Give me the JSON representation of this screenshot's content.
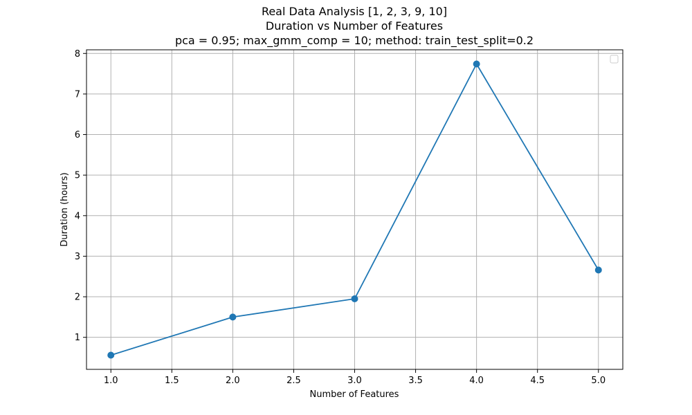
{
  "chart_data": {
    "type": "line",
    "title_lines": [
      "Real Data Analysis [1, 2, 3, 9, 10]",
      "Duration vs Number of Features",
      "pca = 0.95; max_gmm_comp = 10; method: train_test_split=0.2"
    ],
    "xlabel": "Number of Features",
    "ylabel": "Duration (hours)",
    "x": [
      1.0,
      2.0,
      3.0,
      4.0,
      5.0
    ],
    "series": [
      {
        "values": [
          0.56,
          1.5,
          1.95,
          7.74,
          2.66
        ]
      }
    ],
    "xlim": [
      0.8,
      5.2
    ],
    "ylim": [
      0.21,
      8.09
    ],
    "xticks": [
      1.0,
      1.5,
      2.0,
      2.5,
      3.0,
      3.5,
      4.0,
      4.5,
      5.0
    ],
    "xtick_labels": [
      "1.0",
      "1.5",
      "2.0",
      "2.5",
      "3.0",
      "3.5",
      "4.0",
      "4.5",
      "5.0"
    ],
    "yticks": [
      1,
      2,
      3,
      4,
      5,
      6,
      7,
      8
    ],
    "ytick_labels": [
      "1",
      "2",
      "3",
      "4",
      "5",
      "6",
      "7",
      "8"
    ],
    "grid": true,
    "legend": "top-right (empty)",
    "colors": {
      "line": "#1f77b4",
      "marker": "#1f77b4",
      "grid": "#b0b0b0",
      "axes": "#000000"
    },
    "markers": "circle"
  }
}
